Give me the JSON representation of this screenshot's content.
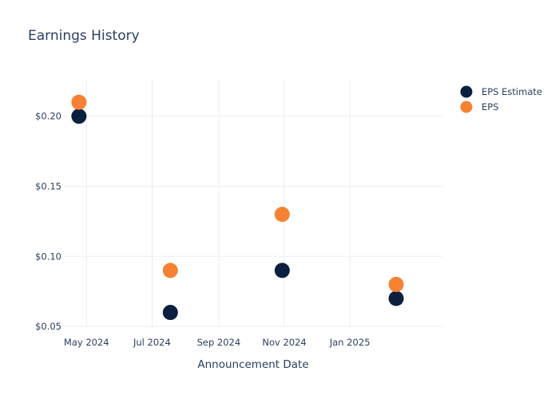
{
  "chart_data": {
    "type": "scatter",
    "title": "Earnings History",
    "xlabel": "Announcement Date",
    "ylabel": "",
    "x_ticks": [
      {
        "date": "2024-05-01",
        "label": "May 2024"
      },
      {
        "date": "2024-07-01",
        "label": "Jul 2024"
      },
      {
        "date": "2024-09-01",
        "label": "Sep 2024"
      },
      {
        "date": "2024-11-01",
        "label": "Nov 2024"
      },
      {
        "date": "2025-01-01",
        "label": "Jan 2025"
      }
    ],
    "xlim": [
      "2024-04-10",
      "2025-03-28"
    ],
    "y_ticks": [
      {
        "value": 0.05,
        "label": "$0.05"
      },
      {
        "value": 0.1,
        "label": "$0.10"
      },
      {
        "value": 0.15,
        "label": "$0.15"
      },
      {
        "value": 0.2,
        "label": "$0.20"
      }
    ],
    "ylim": [
      0.0495,
      0.226
    ],
    "grid": true,
    "legend_position": "top-right",
    "series": [
      {
        "name": "EPS Estimate",
        "color": "#0b1f3f",
        "points": [
          {
            "x": "2024-04-24",
            "y": 0.2
          },
          {
            "x": "2024-07-18",
            "y": 0.06
          },
          {
            "x": "2024-10-30",
            "y": 0.09
          },
          {
            "x": "2025-02-13",
            "y": 0.07
          }
        ]
      },
      {
        "name": "EPS",
        "color": "#f58232",
        "points": [
          {
            "x": "2024-04-24",
            "y": 0.21
          },
          {
            "x": "2024-07-18",
            "y": 0.09
          },
          {
            "x": "2024-10-30",
            "y": 0.13
          },
          {
            "x": "2025-02-13",
            "y": 0.08
          }
        ]
      }
    ]
  }
}
